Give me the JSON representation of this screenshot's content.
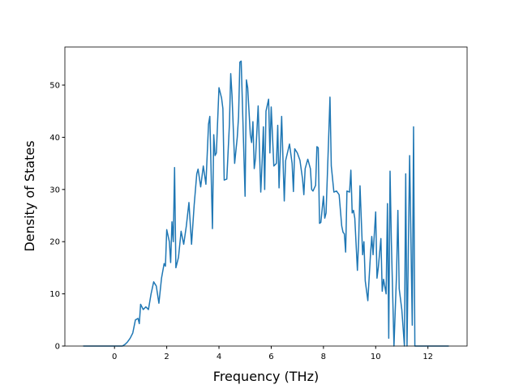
{
  "chart_data": {
    "type": "line",
    "x_label": "Frequency (THz)",
    "y_label": "Density of States",
    "xlim": [
      -1.9,
      13.5
    ],
    "ylim": [
      0,
      57.3
    ],
    "xticks": [
      0,
      2,
      4,
      6,
      8,
      10,
      12
    ],
    "yticks": [
      0,
      10,
      20,
      30,
      40,
      50
    ],
    "grid": false,
    "series": [
      {
        "color": "#1f77b4",
        "x": [
          -1.2,
          0.3,
          0.4,
          0.5,
          0.6,
          0.7,
          0.8,
          0.9,
          0.95,
          1.0,
          1.1,
          1.2,
          1.3,
          1.4,
          1.5,
          1.6,
          1.7,
          1.8,
          1.9,
          1.95,
          2.0,
          2.1,
          2.15,
          2.2,
          2.25,
          2.3,
          2.35,
          2.45,
          2.55,
          2.65,
          2.75,
          2.85,
          2.95,
          3.05,
          3.15,
          3.2,
          3.3,
          3.4,
          3.5,
          3.6,
          3.65,
          3.75,
          3.8,
          3.85,
          3.9,
          4.0,
          4.1,
          4.15,
          4.2,
          4.3,
          4.4,
          4.45,
          4.5,
          4.6,
          4.7,
          4.75,
          4.8,
          4.85,
          4.9,
          5.0,
          5.05,
          5.1,
          5.2,
          5.25,
          5.3,
          5.35,
          5.4,
          5.5,
          5.6,
          5.65,
          5.7,
          5.75,
          5.8,
          5.9,
          5.95,
          6.0,
          6.1,
          6.2,
          6.25,
          6.3,
          6.4,
          6.5,
          6.55,
          6.7,
          6.8,
          6.85,
          6.9,
          7.0,
          7.1,
          7.2,
          7.25,
          7.3,
          7.4,
          7.5,
          7.55,
          7.6,
          7.7,
          7.75,
          7.8,
          7.85,
          7.9,
          8.0,
          8.05,
          8.1,
          8.2,
          8.25,
          8.3,
          8.4,
          8.5,
          8.6,
          8.7,
          8.75,
          8.8,
          8.85,
          8.9,
          9.0,
          9.05,
          9.1,
          9.15,
          9.2,
          9.3,
          9.35,
          9.4,
          9.5,
          9.55,
          9.6,
          9.7,
          9.8,
          9.85,
          9.9,
          10.0,
          10.05,
          10.1,
          10.2,
          10.25,
          10.3,
          10.4,
          10.45,
          10.5,
          10.55,
          10.6,
          10.7,
          10.8,
          10.85,
          10.9,
          11.0,
          11.1,
          11.15,
          11.2,
          11.3,
          11.4,
          11.45,
          11.5,
          11.6,
          12.8
        ],
        "values": [
          0,
          0,
          0.3,
          0.8,
          1.5,
          2.5,
          5,
          5.3,
          4.3,
          8,
          7,
          7.5,
          7,
          10,
          12.3,
          11.5,
          8.2,
          13,
          15.8,
          15.3,
          22.3,
          20,
          16,
          23.8,
          20,
          34.2,
          15,
          17,
          22,
          19.5,
          23,
          27.5,
          19.5,
          27,
          33,
          33.9,
          30.5,
          34.5,
          31,
          42.5,
          44,
          22.5,
          40.5,
          36.5,
          37,
          49.5,
          47.5,
          45.5,
          31.8,
          32,
          42.5,
          52.2,
          48,
          35,
          40,
          44,
          54.4,
          54.6,
          46,
          28.7,
          51,
          49.5,
          40.5,
          39,
          43,
          34,
          36,
          46,
          29.5,
          35,
          42,
          30,
          45,
          47.3,
          37,
          45.8,
          34.5,
          35,
          42.3,
          30.3,
          44,
          27.8,
          35.5,
          38.7,
          35,
          29.6,
          37.8,
          37,
          35.6,
          32,
          29,
          34,
          35.8,
          34,
          30,
          29.7,
          30.8,
          38.2,
          38,
          23.5,
          23.7,
          28.7,
          24.5,
          25.5,
          40,
          47.7,
          34.5,
          29.5,
          29.7,
          29,
          23,
          21.8,
          21.5,
          18,
          29.7,
          29.5,
          33.7,
          25.5,
          26,
          24.5,
          14.5,
          20.5,
          30.7,
          17.5,
          20,
          12.5,
          8.7,
          17.5,
          21,
          17.5,
          25.7,
          13,
          15,
          20.6,
          10.5,
          12.8,
          10,
          27.3,
          1.5,
          33.5,
          20,
          0,
          14,
          26,
          11,
          7,
          0,
          33,
          0,
          36.5,
          4,
          42,
          0,
          0,
          0
        ]
      }
    ]
  }
}
